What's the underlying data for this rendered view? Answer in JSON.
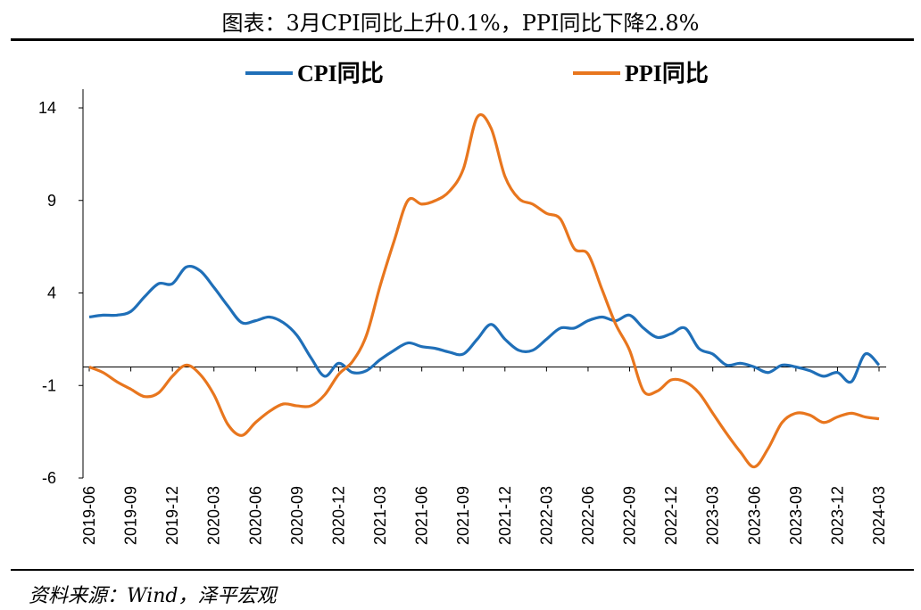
{
  "title": "图表：3月CPI同比上升0.1%，PPI同比下降2.8%",
  "source": "资料来源：Wind，泽平宏观",
  "chart_data": {
    "type": "line",
    "title": "图表：3月CPI同比上升0.1%，PPI同比下降2.8%",
    "xlabel": "",
    "ylabel": "",
    "ylim": [
      -6,
      14
    ],
    "yticks": [
      -6,
      -1,
      4,
      9,
      14
    ],
    "grid": false,
    "legend_position": "top",
    "x": [
      "2019-06",
      "2019-07",
      "2019-08",
      "2019-09",
      "2019-10",
      "2019-11",
      "2019-12",
      "2020-01",
      "2020-02",
      "2020-03",
      "2020-04",
      "2020-05",
      "2020-06",
      "2020-07",
      "2020-08",
      "2020-09",
      "2020-10",
      "2020-11",
      "2020-12",
      "2021-01",
      "2021-02",
      "2021-03",
      "2021-04",
      "2021-05",
      "2021-06",
      "2021-07",
      "2021-08",
      "2021-09",
      "2021-10",
      "2021-11",
      "2021-12",
      "2022-01",
      "2022-02",
      "2022-03",
      "2022-04",
      "2022-05",
      "2022-06",
      "2022-07",
      "2022-08",
      "2022-09",
      "2022-10",
      "2022-11",
      "2022-12",
      "2023-01",
      "2023-02",
      "2023-03",
      "2023-04",
      "2023-05",
      "2023-06",
      "2023-07",
      "2023-08",
      "2023-09",
      "2023-10",
      "2023-11",
      "2023-12",
      "2024-01",
      "2024-02",
      "2024-03"
    ],
    "xticklabels": [
      "2019-06",
      "2019-09",
      "2019-12",
      "2020-03",
      "2020-06",
      "2020-09",
      "2020-12",
      "2021-03",
      "2021-06",
      "2021-09",
      "2021-12",
      "2022-03",
      "2022-06",
      "2022-09",
      "2022-12",
      "2023-03",
      "2023-06",
      "2023-09",
      "2023-12",
      "2024-03"
    ],
    "series": [
      {
        "name": "CPI同比",
        "color": "#1F6FB8",
        "values": [
          2.7,
          2.8,
          2.8,
          3.0,
          3.8,
          4.5,
          4.5,
          5.4,
          5.2,
          4.3,
          3.3,
          2.4,
          2.5,
          2.7,
          2.4,
          1.7,
          0.5,
          -0.5,
          0.2,
          -0.3,
          -0.2,
          0.4,
          0.9,
          1.3,
          1.1,
          1.0,
          0.8,
          0.7,
          1.5,
          2.3,
          1.5,
          0.9,
          0.9,
          1.5,
          2.1,
          2.1,
          2.5,
          2.7,
          2.5,
          2.8,
          2.1,
          1.6,
          1.8,
          2.1,
          1.0,
          0.7,
          0.1,
          0.2,
          0.0,
          -0.3,
          0.1,
          0.0,
          -0.2,
          -0.5,
          -0.3,
          -0.8,
          0.7,
          0.1
        ]
      },
      {
        "name": "PPI同比",
        "color": "#E8761E",
        "values": [
          0.0,
          -0.3,
          -0.8,
          -1.2,
          -1.6,
          -1.4,
          -0.5,
          0.1,
          -0.4,
          -1.5,
          -3.1,
          -3.7,
          -3.0,
          -2.4,
          -2.0,
          -2.1,
          -2.1,
          -1.5,
          -0.4,
          0.3,
          1.7,
          4.4,
          6.8,
          9.0,
          8.8,
          9.0,
          9.5,
          10.7,
          13.5,
          12.9,
          10.3,
          9.1,
          8.8,
          8.3,
          8.0,
          6.4,
          6.1,
          4.2,
          2.3,
          0.9,
          -1.3,
          -1.3,
          -0.7,
          -0.8,
          -1.4,
          -2.5,
          -3.6,
          -4.6,
          -5.4,
          -4.4,
          -3.0,
          -2.5,
          -2.6,
          -3.0,
          -2.7,
          -2.5,
          -2.7,
          -2.8
        ]
      }
    ]
  }
}
